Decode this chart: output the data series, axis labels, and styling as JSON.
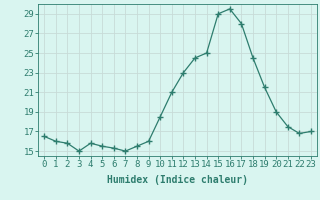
{
  "x": [
    0,
    1,
    2,
    3,
    4,
    5,
    6,
    7,
    8,
    9,
    10,
    11,
    12,
    13,
    14,
    15,
    16,
    17,
    18,
    19,
    20,
    21,
    22,
    23
  ],
  "y": [
    16.5,
    16.0,
    15.8,
    15.0,
    15.8,
    15.5,
    15.3,
    15.0,
    15.5,
    16.0,
    18.5,
    21.0,
    23.0,
    24.5,
    25.0,
    29.0,
    29.5,
    28.0,
    24.5,
    21.5,
    19.0,
    17.5,
    16.8,
    17.0
  ],
  "line_color": "#2e7d6e",
  "marker": "+",
  "marker_size": 4,
  "bg_color": "#d9f5f0",
  "grid_color": "#c8dbd8",
  "xlabel": "Humidex (Indice chaleur)",
  "xlim": [
    -0.5,
    23.5
  ],
  "ylim": [
    14.5,
    30.0
  ],
  "yticks": [
    15,
    17,
    19,
    21,
    23,
    25,
    27,
    29
  ],
  "xticks": [
    0,
    1,
    2,
    3,
    4,
    5,
    6,
    7,
    8,
    9,
    10,
    11,
    12,
    13,
    14,
    15,
    16,
    17,
    18,
    19,
    20,
    21,
    22,
    23
  ],
  "xtick_labels": [
    "0",
    "1",
    "2",
    "3",
    "4",
    "5",
    "6",
    "7",
    "8",
    "9",
    "10",
    "11",
    "12",
    "13",
    "14",
    "15",
    "16",
    "17",
    "18",
    "19",
    "20",
    "21",
    "22",
    "23"
  ],
  "tick_color": "#2e7d6e",
  "label_color": "#2e7d6e",
  "xlabel_fontsize": 7,
  "tick_fontsize": 6.5,
  "line_width": 0.9,
  "spine_color": "#2e7d6e"
}
